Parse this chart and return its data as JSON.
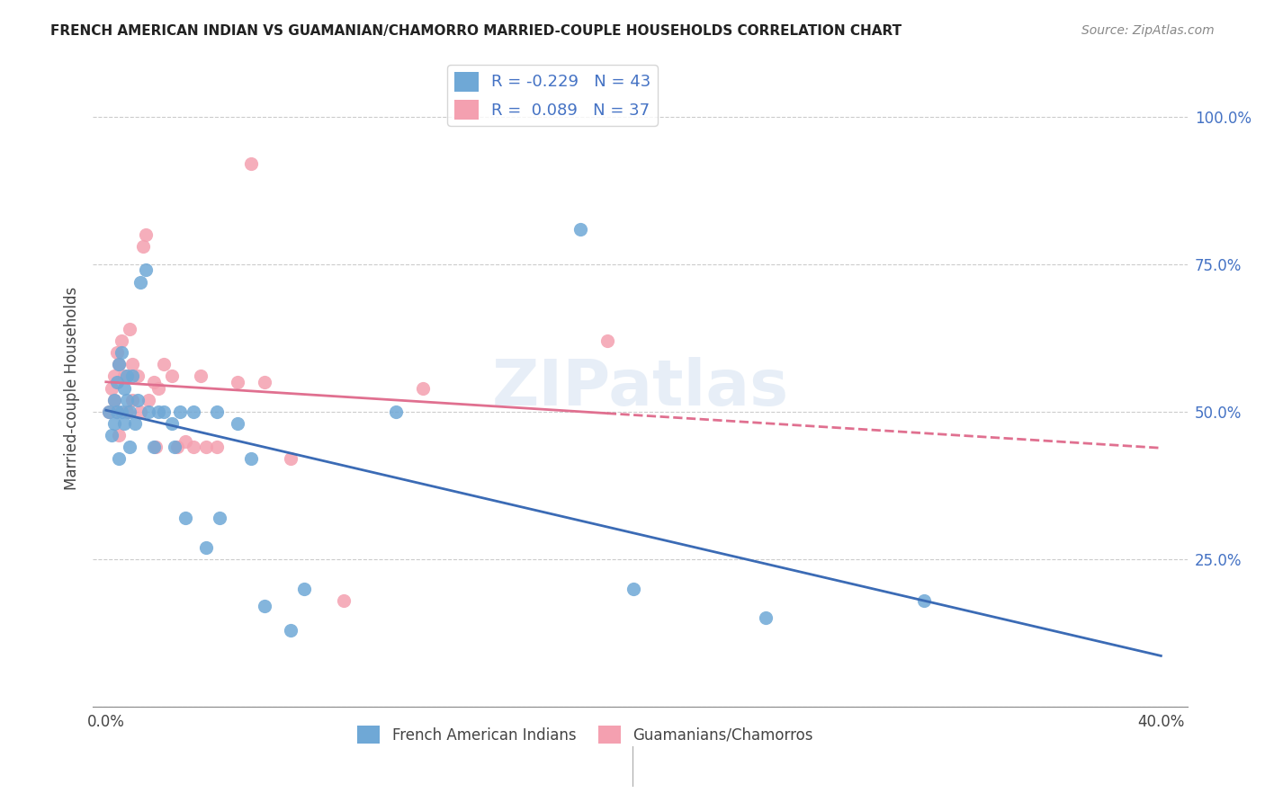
{
  "title": "FRENCH AMERICAN INDIAN VS GUAMANIAN/CHAMORRO MARRIED-COUPLE HOUSEHOLDS CORRELATION CHART",
  "source": "Source: ZipAtlas.com",
  "ylabel_label": "Married-couple Households",
  "legend_r_blue": "-0.229",
  "legend_n_blue": "43",
  "legend_r_pink": "0.089",
  "legend_n_pink": "37",
  "blue_color": "#6fa8d6",
  "pink_color": "#f4a0b0",
  "trend_blue_color": "#3b6bb5",
  "trend_pink_color": "#e07090",
  "watermark": "ZIPatlas",
  "blue_points_x": [
    0.001,
    0.002,
    0.003,
    0.003,
    0.004,
    0.004,
    0.005,
    0.005,
    0.006,
    0.006,
    0.007,
    0.007,
    0.008,
    0.008,
    0.009,
    0.009,
    0.01,
    0.011,
    0.012,
    0.013,
    0.015,
    0.016,
    0.018,
    0.02,
    0.022,
    0.025,
    0.026,
    0.028,
    0.03,
    0.033,
    0.038,
    0.042,
    0.043,
    0.05,
    0.055,
    0.06,
    0.07,
    0.075,
    0.11,
    0.18,
    0.2,
    0.25,
    0.31
  ],
  "blue_points_y": [
    0.5,
    0.46,
    0.48,
    0.52,
    0.55,
    0.5,
    0.58,
    0.42,
    0.6,
    0.5,
    0.54,
    0.48,
    0.52,
    0.56,
    0.5,
    0.44,
    0.56,
    0.48,
    0.52,
    0.72,
    0.74,
    0.5,
    0.44,
    0.5,
    0.5,
    0.48,
    0.44,
    0.5,
    0.32,
    0.5,
    0.27,
    0.5,
    0.32,
    0.48,
    0.42,
    0.17,
    0.13,
    0.2,
    0.5,
    0.81,
    0.2,
    0.15,
    0.18
  ],
  "pink_points_x": [
    0.001,
    0.002,
    0.003,
    0.003,
    0.004,
    0.004,
    0.005,
    0.005,
    0.006,
    0.007,
    0.008,
    0.009,
    0.01,
    0.01,
    0.012,
    0.013,
    0.014,
    0.015,
    0.016,
    0.018,
    0.019,
    0.02,
    0.022,
    0.025,
    0.027,
    0.03,
    0.033,
    0.036,
    0.038,
    0.042,
    0.05,
    0.055,
    0.06,
    0.07,
    0.09,
    0.12,
    0.19
  ],
  "pink_points_y": [
    0.5,
    0.54,
    0.52,
    0.56,
    0.6,
    0.5,
    0.58,
    0.46,
    0.62,
    0.56,
    0.5,
    0.64,
    0.52,
    0.58,
    0.56,
    0.5,
    0.78,
    0.8,
    0.52,
    0.55,
    0.44,
    0.54,
    0.58,
    0.56,
    0.44,
    0.45,
    0.44,
    0.56,
    0.44,
    0.44,
    0.55,
    0.92,
    0.55,
    0.42,
    0.18,
    0.54,
    0.62
  ]
}
